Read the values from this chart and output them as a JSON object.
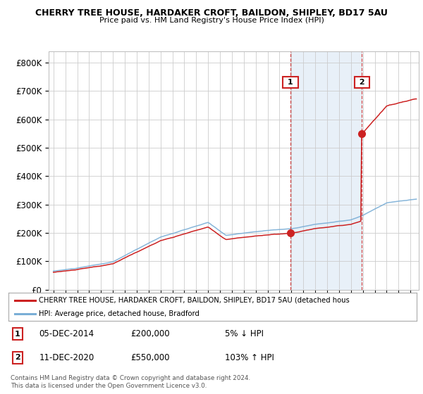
{
  "title1": "CHERRY TREE HOUSE, HARDAKER CROFT, BAILDON, SHIPLEY, BD17 5AU",
  "title2": "Price paid vs. HM Land Registry's House Price Index (HPI)",
  "yticks": [
    0,
    100000,
    200000,
    300000,
    400000,
    500000,
    600000,
    700000,
    800000
  ],
  "ytick_labels": [
    "£0",
    "£100K",
    "£200K",
    "£300K",
    "£400K",
    "£500K",
    "£600K",
    "£700K",
    "£800K"
  ],
  "ylim": [
    0,
    840000
  ],
  "hpi_color": "#7aaed6",
  "price_color": "#cc2222",
  "sale1_year": 2014.92,
  "sale1_price": 200000,
  "sale2_year": 2020.92,
  "sale2_price": 550000,
  "legend_line1": "CHERRY TREE HOUSE, HARDAKER CROFT, BAILDON, SHIPLEY, BD17 5AU (detached hous",
  "legend_line2": "HPI: Average price, detached house, Bradford",
  "annotation1_label": "1",
  "annotation1_date": "05-DEC-2014",
  "annotation1_price": "£200,000",
  "annotation1_pct": "5% ↓ HPI",
  "annotation2_label": "2",
  "annotation2_date": "11-DEC-2020",
  "annotation2_price": "£550,000",
  "annotation2_pct": "103% ↑ HPI",
  "footer": "Contains HM Land Registry data © Crown copyright and database right 2024.\nThis data is licensed under the Open Government Licence v3.0.",
  "bg_color": "#ffffff",
  "grid_color": "#cccccc",
  "shade_color": "#e8f0f8"
}
